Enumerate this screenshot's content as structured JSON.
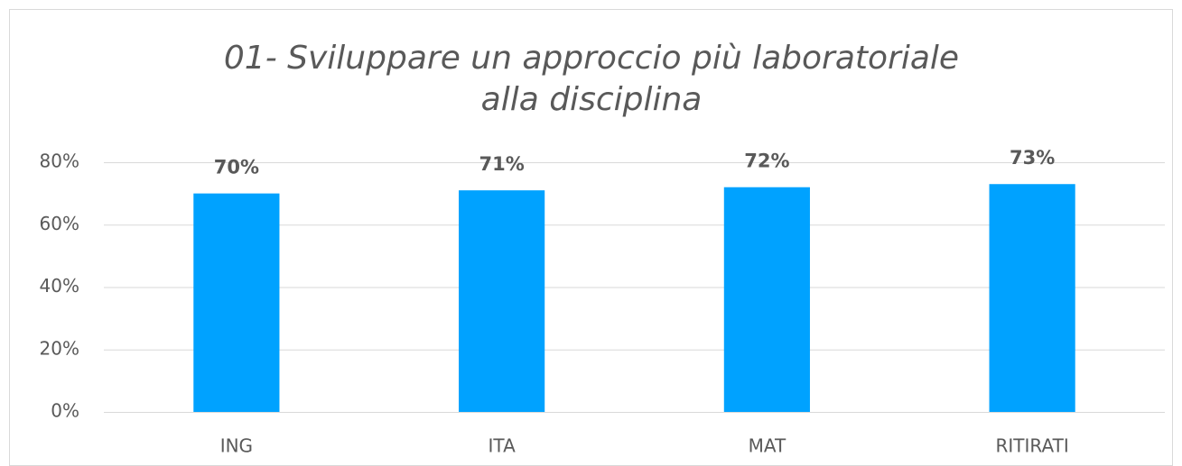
{
  "chart_data": {
    "type": "bar",
    "title": "01- Sviluppare un approccio più laboratoriale alla disciplina",
    "categories": [
      "ING",
      "ITA",
      "MAT",
      "RITIRATI"
    ],
    "values": [
      70,
      71,
      72,
      73
    ],
    "value_labels": [
      "70%",
      "71%",
      "72%",
      "73%"
    ],
    "color": "#00a2ff",
    "ylim": [
      0,
      80
    ],
    "yticks": [
      {
        "value": 0,
        "label": "0%"
      },
      {
        "value": 20,
        "label": "20%"
      },
      {
        "value": 40,
        "label": "40%"
      },
      {
        "value": 60,
        "label": "60%"
      },
      {
        "value": 80,
        "label": "80%"
      }
    ],
    "grid": true
  }
}
